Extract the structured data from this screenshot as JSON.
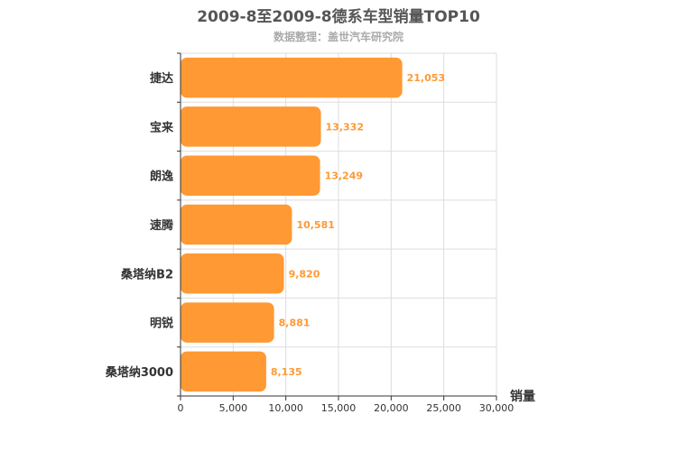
{
  "chart_data": {
    "type": "bar",
    "orientation": "horizontal",
    "title": "2009-8至2009-8德系车型销量TOP10",
    "subtitle": "数据整理：盖世汽车研究院",
    "categories": [
      "捷达",
      "宝来",
      "朗逸",
      "速腾",
      "桑塔纳B2",
      "明锐",
      "桑塔纳3000"
    ],
    "values": [
      21053,
      13332,
      13249,
      10581,
      9820,
      8881,
      8135
    ],
    "value_labels": [
      "21,053",
      "13,332",
      "13,249",
      "10,581",
      "9,820",
      "8,881",
      "8,135"
    ],
    "xlabel": "销量",
    "ylabel": "",
    "xlim": [
      0,
      30000
    ],
    "x_ticks": [
      0,
      5000,
      10000,
      15000,
      20000,
      25000,
      30000
    ],
    "x_tick_labels": [
      "0",
      "5,000",
      "10,000",
      "15,000",
      "20,000",
      "25,000",
      "30,000"
    ],
    "grid": true,
    "bar_color": "#ff9933",
    "label_color": "#ff9933"
  }
}
